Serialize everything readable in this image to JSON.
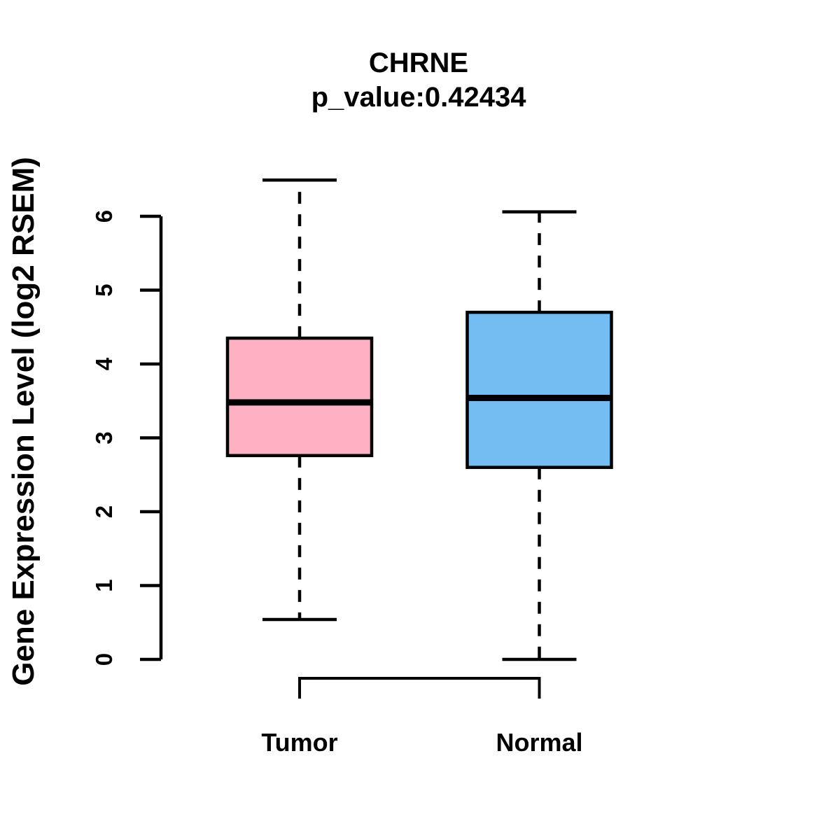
{
  "chart_data": {
    "type": "boxplot",
    "title": "CHRNE",
    "subtitle": "p_value:0.42434",
    "ylabel": "Gene Expression Level (log2 RSEM)",
    "ylim": [
      0,
      6
    ],
    "yticks": [
      0,
      1,
      2,
      3,
      4,
      5,
      6
    ],
    "grid": false,
    "legend": "none",
    "background_color": "#FFFFFF",
    "stroke_color": "#000000",
    "groups": [
      {
        "label": "Tumor",
        "color": "#FFB1C4",
        "whisker_low": 0.54,
        "q1": 2.76,
        "median": 3.48,
        "q3": 4.35,
        "whisker_high": 6.49
      },
      {
        "label": "Normal",
        "color": "#74BDF2",
        "whisker_low": 0.0,
        "q1": 2.6,
        "median": 3.54,
        "q3": 4.7,
        "whisker_high": 6.06
      }
    ]
  }
}
